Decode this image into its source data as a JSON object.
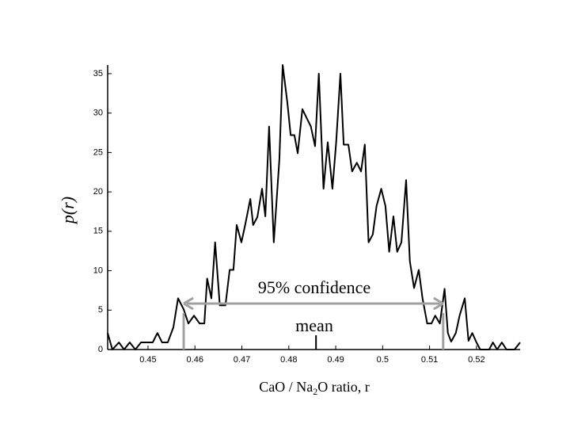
{
  "chart_data": {
    "type": "line",
    "xlabel": {
      "pre": "CaO / Na",
      "sub": "2",
      "post": "O ratio, r"
    },
    "ylabel": "p(r)",
    "color": "#000000",
    "xlim": [
      0.4414,
      0.5293
    ],
    "ylim": [
      0,
      36.1
    ],
    "xticks": [
      0.45,
      0.46,
      0.47,
      0.48,
      0.49,
      0.5,
      0.51,
      0.52
    ],
    "yticks": [
      0,
      5,
      10,
      15,
      20,
      25,
      30,
      35
    ],
    "x": [
      0.4414,
      0.4424,
      0.4438,
      0.4449,
      0.4461,
      0.4473,
      0.4485,
      0.4498,
      0.451,
      0.452,
      0.453,
      0.4542,
      0.4554,
      0.4564,
      0.4576,
      0.4586,
      0.4598,
      0.461,
      0.462,
      0.4626,
      0.4635,
      0.4643,
      0.4653,
      0.4665,
      0.4674,
      0.4682,
      0.4689,
      0.4699,
      0.4707,
      0.4718,
      0.4724,
      0.4733,
      0.4743,
      0.475,
      0.4758,
      0.4768,
      0.478,
      0.4787,
      0.4797,
      0.4804,
      0.4812,
      0.4819,
      0.4829,
      0.4837,
      0.4847,
      0.4856,
      0.4864,
      0.4874,
      0.4883,
      0.4893,
      0.4901,
      0.491,
      0.4917,
      0.4927,
      0.4935,
      0.4945,
      0.4954,
      0.4962,
      0.497,
      0.4979,
      0.4987,
      0.4997,
      0.5006,
      0.5014,
      0.5023,
      0.5031,
      0.504,
      0.505,
      0.5058,
      0.5067,
      0.5077,
      0.5085,
      0.5095,
      0.5104,
      0.5112,
      0.5122,
      0.5132,
      0.5139,
      0.5146,
      0.5156,
      0.5164,
      0.5175,
      0.5183,
      0.5191,
      0.52,
      0.5208,
      0.5217,
      0.5227,
      0.5235,
      0.5244,
      0.5254,
      0.5264,
      0.5272,
      0.5281,
      0.5293
    ],
    "values": [
      2.1,
      0,
      0.9,
      0,
      0.9,
      0,
      0.9,
      0.9,
      0.9,
      2.1,
      0.9,
      0.9,
      2.8,
      6.5,
      5.1,
      3.3,
      4.3,
      3.3,
      3.3,
      9.0,
      6.5,
      13.6,
      5.6,
      5.6,
      10.1,
      10.1,
      15.8,
      13.6,
      15.8,
      19.1,
      15.8,
      16.8,
      20.4,
      16.9,
      28.3,
      13.6,
      24.2,
      36.1,
      31.3,
      27.2,
      27.2,
      24.9,
      30.5,
      29.5,
      28.3,
      25.8,
      35.0,
      20.4,
      26.3,
      20.4,
      26.3,
      35.0,
      26.0,
      26.0,
      22.6,
      23.7,
      22.6,
      26.0,
      13.6,
      14.6,
      18.2,
      20.4,
      18.2,
      12.4,
      16.9,
      12.4,
      13.6,
      21.5,
      11.2,
      7.8,
      10.1,
      6.5,
      3.3,
      3.3,
      4.3,
      3.3,
      7.7,
      2.1,
      1.0,
      2.1,
      4.3,
      6.5,
      1.1,
      2.1,
      0.9,
      0,
      0,
      0,
      0.9,
      0,
      0.9,
      0,
      0,
      0,
      0.9
    ],
    "confidence": {
      "label": "95% confidence",
      "interval": [
        0.4576,
        0.5129
      ],
      "color": "#a0a0a0"
    },
    "mean": {
      "label": "mean",
      "value": 0.4858
    }
  }
}
